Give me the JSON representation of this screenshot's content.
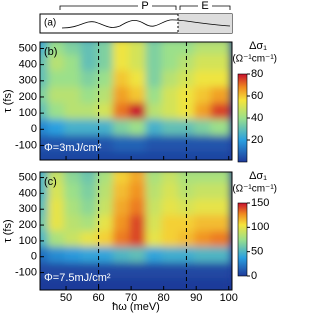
{
  "chart_data": [
    {
      "type": "schematic",
      "panel_label": "(a)",
      "annotations": [
        "P",
        "E"
      ]
    },
    {
      "type": "heatmap",
      "panel_label": "(b)",
      "annotation": "Φ=3mJ/cm²",
      "x": [
        42.5,
        47.5,
        52.5,
        57.5,
        62.5,
        67.5,
        72.5,
        77.5,
        82.5,
        87.5,
        92.5,
        97.5
      ],
      "y": [
        500,
        400,
        300,
        200,
        100,
        0,
        -100,
        -200
      ],
      "z": [
        [
          25,
          40,
          35,
          30,
          35,
          55,
          50,
          35,
          40,
          40,
          45,
          45
        ],
        [
          30,
          45,
          40,
          30,
          35,
          55,
          50,
          35,
          40,
          45,
          50,
          50
        ],
        [
          30,
          40,
          40,
          35,
          40,
          60,
          55,
          35,
          45,
          50,
          55,
          55
        ],
        [
          35,
          45,
          45,
          40,
          45,
          65,
          60,
          40,
          50,
          55,
          60,
          65
        ],
        [
          30,
          40,
          45,
          45,
          50,
          70,
          80,
          45,
          50,
          55,
          65,
          75
        ],
        [
          15,
          20,
          25,
          25,
          25,
          35,
          40,
          25,
          30,
          30,
          35,
          40
        ],
        [
          5,
          5,
          5,
          5,
          5,
          8,
          8,
          5,
          5,
          5,
          5,
          5
        ],
        [
          2,
          2,
          2,
          2,
          2,
          2,
          2,
          2,
          2,
          2,
          2,
          2
        ]
      ],
      "xlim": [
        42,
        101
      ],
      "xticks": [
        50,
        60,
        70,
        80,
        90,
        100
      ],
      "ylim": [
        -190,
        540
      ],
      "yticks": [
        -100,
        0,
        100,
        200,
        300,
        400,
        500
      ],
      "ylabel": "τ (fs)",
      "vlines": [
        60,
        87
      ],
      "colorbar_label": "Δσ₁",
      "colorbar_unit": "(Ω⁻¹cm⁻¹)",
      "clim": [
        0,
        80
      ],
      "cticks": [
        20,
        40,
        60,
        80
      ]
    },
    {
      "type": "heatmap",
      "panel_label": "(c)",
      "annotation": "Φ=7.5mJ/cm²",
      "x": [
        42.5,
        47.5,
        52.5,
        57.5,
        62.5,
        67.5,
        72.5,
        77.5,
        82.5,
        87.5,
        92.5,
        97.5
      ],
      "y": [
        500,
        400,
        300,
        200,
        100,
        0,
        -100,
        -200
      ],
      "z": [
        [
          50,
          90,
          70,
          60,
          80,
          110,
          120,
          80,
          90,
          80,
          80,
          80
        ],
        [
          50,
          95,
          75,
          65,
          85,
          115,
          125,
          85,
          95,
          85,
          90,
          90
        ],
        [
          55,
          100,
          80,
          70,
          90,
          120,
          130,
          90,
          100,
          95,
          100,
          100
        ],
        [
          60,
          100,
          85,
          80,
          100,
          125,
          140,
          95,
          110,
          110,
          115,
          115
        ],
        [
          50,
          80,
          90,
          100,
          110,
          130,
          140,
          100,
          110,
          115,
          125,
          130
        ],
        [
          20,
          30,
          35,
          40,
          40,
          50,
          55,
          40,
          45,
          45,
          50,
          50
        ],
        [
          5,
          5,
          5,
          5,
          5,
          5,
          5,
          5,
          5,
          5,
          5,
          5
        ],
        [
          0,
          0,
          0,
          0,
          0,
          0,
          0,
          0,
          0,
          0,
          0,
          0
        ]
      ],
      "xlim": [
        42,
        101
      ],
      "xticks": [
        50,
        60,
        70,
        80,
        90,
        100
      ],
      "xlabel": "ħω (meV)",
      "ylim": [
        -210,
        535
      ],
      "yticks": [
        -100,
        0,
        100,
        200,
        300,
        400,
        500
      ],
      "ylabel": "τ (fs)",
      "vlines": [
        60,
        87
      ],
      "colorbar_label": "Δσ₁",
      "colorbar_unit": "(Ω⁻¹cm⁻¹)",
      "clim": [
        0,
        150
      ],
      "cticks": [
        0,
        50,
        100,
        150
      ]
    }
  ]
}
